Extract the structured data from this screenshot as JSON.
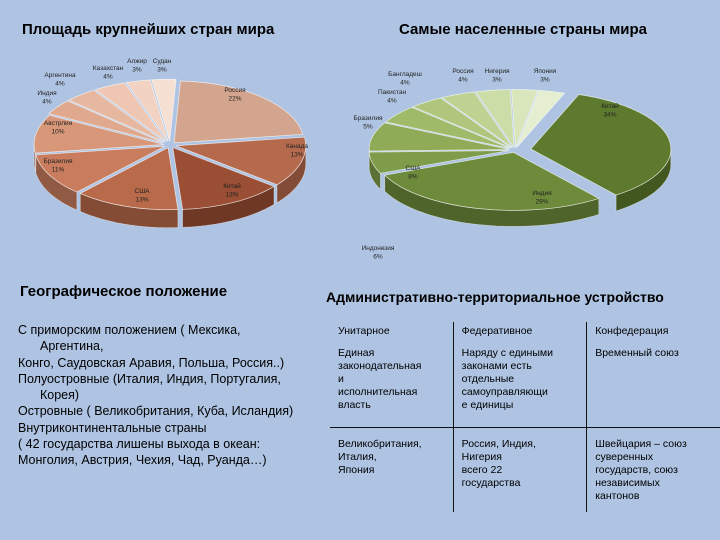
{
  "titles": {
    "area": "Площадь крупнейших стран мира",
    "population": "Самые населенные страны мира",
    "geo": "Географическое положение",
    "admin": "Административно-территориальное устройство"
  },
  "chart_data": [
    {
      "type": "pie",
      "title": "Площадь крупнейших стран мира",
      "slices": [
        {
          "name": "Россия",
          "value": 22,
          "label": "22%",
          "color": "#d4a58e"
        },
        {
          "name": "Канада",
          "value": 13,
          "label": "13%",
          "color": "#b56a4d"
        },
        {
          "name": "Китай",
          "value": 13,
          "label": "13%",
          "color": "#9a4e33"
        },
        {
          "name": "США",
          "value": 13,
          "label": "13%",
          "color": "#b86a4a"
        },
        {
          "name": "Бразилия",
          "value": 11,
          "label": "11%",
          "color": "#c97d5e"
        },
        {
          "name": "Австрлия",
          "value": 10,
          "label": "10%",
          "color": "#d89779"
        },
        {
          "name": "Индия",
          "value": 4,
          "label": "4%",
          "color": "#e0a88c"
        },
        {
          "name": "Аргентина",
          "value": 4,
          "label": "4%",
          "color": "#e7b8a0"
        },
        {
          "name": "Казахстан",
          "value": 4,
          "label": "4%",
          "color": "#eec6b2"
        },
        {
          "name": "Алжир",
          "value": 3,
          "label": "3%",
          "color": "#f2d3c3"
        },
        {
          "name": "Судан",
          "value": 3,
          "label": "3%",
          "color": "#f6e0d4"
        }
      ]
    },
    {
      "type": "pie",
      "title": "Самые населенные страны мира",
      "slices": [
        {
          "name": "Китай",
          "value": 34,
          "label": "34%",
          "color": "#5d7a2e"
        },
        {
          "name": "Индия",
          "value": 29,
          "label": "29%",
          "color": "#6d8b3a"
        },
        {
          "name": "Индонезия",
          "value": 6,
          "label": "6%",
          "color": "#7f9c4a"
        },
        {
          "name": "США",
          "value": 8,
          "label": "8%",
          "color": "#8fab58"
        },
        {
          "name": "Бразилия",
          "value": 5,
          "label": "5%",
          "color": "#9fba68"
        },
        {
          "name": "Пакистан",
          "value": 4,
          "label": "4%",
          "color": "#afc67c"
        },
        {
          "name": "Бангладеш",
          "value": 4,
          "label": "4%",
          "color": "#bfd292"
        },
        {
          "name": "Россия",
          "value": 4,
          "label": "4%",
          "color": "#cddda7"
        },
        {
          "name": "Нигерия",
          "value": 3,
          "label": "3%",
          "color": "#d9e6bb"
        },
        {
          "name": "Япония",
          "value": 3,
          "label": "3%",
          "color": "#e5eed0"
        }
      ]
    }
  ],
  "geo": {
    "lines": [
      {
        "text": "С приморским положением  ( Мексика,",
        "indent": false
      },
      {
        "text": "Аргентина,",
        "indent": true
      },
      {
        "text": "Конго, Саудовская Аравия, Польша, Россия..)",
        "indent": false
      },
      {
        "text": "Полуостровные  (Италия, Индия, Португалия,",
        "indent": false
      },
      {
        "text": "Корея)",
        "indent": true
      },
      {
        "text": "Островные  ( Великобритания, Куба, Исландия)",
        "indent": false
      },
      {
        "text": "Внутриконтинентальные страны",
        "indent": false
      },
      {
        "text": "( 42 государства лишены выхода в океан:",
        "indent": false
      },
      {
        "text": "Монголия, Австрия, Чехия, Чад, Руанда…)",
        "indent": false
      }
    ]
  },
  "admin": {
    "unitary": {
      "title": "Унитарное",
      "desc": [
        "Единая",
        "законодательная",
        "и",
        "исполнительная",
        "власть"
      ],
      "examples": [
        "Великобритания,",
        "Италия,",
        "Япония"
      ]
    },
    "federal": {
      "title": "Федеративное",
      "desc": [
        "Наряду с едиными",
        "законами есть",
        "отдельные",
        "самоуправляющи",
        "е единицы"
      ],
      "examples": [
        "Россия, Индия,",
        "Нигерия",
        "всего 22",
        "государства"
      ]
    },
    "confed": {
      "title": "Конфедерация",
      "desc": [
        "Временный союз"
      ],
      "examples": [
        "Швейцария – союз",
        "суверенных",
        "государств, союз",
        "независимых",
        "кантонов"
      ]
    }
  }
}
